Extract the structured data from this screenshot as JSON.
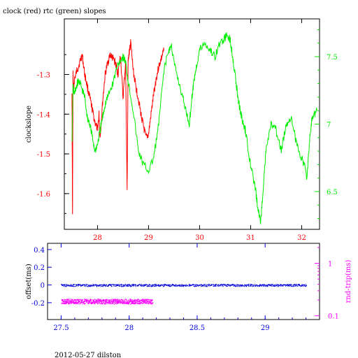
{
  "title": "clock (red) rtc (green) slopes",
  "footer": "2012-05-27 dilston",
  "colors": {
    "clock": "#ff0000",
    "rtc": "#00ee00",
    "offset": "#0000dd",
    "rndtrip": "#ff00ff",
    "frame": "#000000"
  },
  "chart_data": [
    {
      "type": "line",
      "title": "clock (red) rtc (green) slopes",
      "xlabel": "",
      "ylabel": "clockslope",
      "y2label": "",
      "xlim": [
        27.35,
        32.35
      ],
      "ylim": [
        -1.69,
        -1.16
      ],
      "y2lim": [
        6.22,
        7.78
      ],
      "x_ticks": [
        28,
        29,
        30,
        31,
        32
      ],
      "x_tick_labels": [
        "28",
        "29",
        "30",
        "31",
        "32"
      ],
      "y_ticks": [
        -1.6,
        -1.5,
        -1.4,
        -1.3
      ],
      "y_tick_labels": [
        "-1.6",
        "-1.5",
        "-1.4",
        "-1.3"
      ],
      "y2_ticks": [
        6.5,
        7,
        7.5
      ],
      "y2_tick_labels": [
        "6.5",
        "7",
        "7.5"
      ],
      "series": [
        {
          "name": "clock",
          "axis": "left",
          "x": [
            27.5,
            27.51,
            27.52,
            27.53,
            27.55,
            27.6,
            27.65,
            27.7,
            27.75,
            27.8,
            27.85,
            27.9,
            27.95,
            28.0,
            28.03,
            28.05,
            28.1,
            28.15,
            28.2,
            28.25,
            28.3,
            28.35,
            28.4,
            28.45,
            28.5,
            28.55,
            28.58,
            28.6,
            28.63,
            28.65,
            28.7,
            28.75,
            28.8,
            28.85,
            28.9,
            28.95,
            29.0,
            29.05,
            29.1,
            29.15,
            29.2,
            29.25,
            29.3
          ],
          "y": [
            -1.34,
            -1.66,
            -1.3,
            -1.34,
            -1.31,
            -1.29,
            -1.27,
            -1.25,
            -1.3,
            -1.33,
            -1.36,
            -1.39,
            -1.42,
            -1.44,
            -1.4,
            -1.46,
            -1.37,
            -1.3,
            -1.27,
            -1.25,
            -1.26,
            -1.27,
            -1.3,
            -1.25,
            -1.36,
            -1.27,
            -1.6,
            -1.26,
            -1.24,
            -1.22,
            -1.29,
            -1.33,
            -1.36,
            -1.4,
            -1.43,
            -1.46,
            -1.45,
            -1.4,
            -1.35,
            -1.31,
            -1.28,
            -1.26,
            -1.24
          ]
        },
        {
          "name": "rtc",
          "axis": "right",
          "x": [
            27.5,
            27.52,
            27.55,
            27.6,
            27.65,
            27.7,
            27.75,
            27.8,
            27.85,
            27.9,
            27.95,
            28.0,
            28.05,
            28.1,
            28.15,
            28.2,
            28.3,
            28.4,
            28.5,
            28.55,
            28.6,
            28.7,
            28.8,
            28.9,
            29.0,
            29.1,
            29.2,
            29.3,
            29.4,
            29.45,
            29.5,
            29.6,
            29.7,
            29.8,
            29.85,
            29.9,
            29.95,
            30.0,
            30.1,
            30.2,
            30.3,
            30.4,
            30.5,
            30.55,
            30.6,
            30.65,
            30.7,
            30.75,
            30.8,
            30.85,
            30.9,
            31.0,
            31.1,
            31.15,
            31.2,
            31.25,
            31.3,
            31.4,
            31.5,
            31.6,
            31.7,
            31.8,
            31.9,
            32.0,
            32.05,
            32.1,
            32.15,
            32.2,
            32.3
          ],
          "y": [
            6.85,
            7.28,
            7.22,
            7.3,
            7.32,
            7.25,
            7.2,
            7.05,
            7.0,
            6.9,
            6.8,
            6.85,
            6.95,
            7.05,
            7.15,
            7.2,
            7.3,
            7.45,
            7.5,
            7.46,
            7.32,
            7.1,
            6.8,
            6.7,
            6.65,
            6.75,
            7.0,
            7.4,
            7.55,
            7.58,
            7.45,
            7.3,
            7.15,
            7.0,
            7.2,
            7.35,
            7.45,
            7.55,
            7.6,
            7.55,
            7.5,
            7.6,
            7.64,
            7.66,
            7.62,
            7.5,
            7.35,
            7.2,
            7.1,
            7.0,
            6.95,
            6.7,
            6.5,
            6.35,
            6.28,
            6.55,
            6.8,
            7.0,
            6.95,
            6.8,
            7.0,
            7.05,
            6.85,
            6.75,
            6.7,
            6.6,
            6.85,
            7.05,
            7.1
          ]
        }
      ]
    },
    {
      "type": "scatter",
      "xlabel": "",
      "ylabel": "offset(ms)",
      "y2label": "rnd-trip(ms)",
      "xlim": [
        27.4,
        29.4
      ],
      "ylim": [
        -0.39,
        0.47
      ],
      "y2_scale": "log",
      "y2lim": [
        0.085,
        2.4
      ],
      "x_ticks": [
        27.5,
        28,
        28.5,
        29
      ],
      "x_tick_labels": [
        "27.5",
        "28",
        "28.5",
        "29"
      ],
      "y_ticks": [
        -0.2,
        0,
        0.2,
        0.4
      ],
      "y_tick_labels": [
        "-0.2",
        "0",
        "0.2",
        "0.4"
      ],
      "y2_ticks": [
        0.1,
        1
      ],
      "y2_tick_labels": [
        "0.1",
        "1"
      ],
      "series": [
        {
          "name": "offset",
          "axis": "left",
          "x": [
            27.5,
            27.75,
            28.0,
            28.25,
            28.5,
            28.75,
            29.0,
            29.3
          ],
          "y": [
            0.0,
            0.0,
            0.0,
            0.0,
            0.0,
            0.0,
            0.0,
            0.0
          ]
        },
        {
          "name": "rnd-trip",
          "axis": "right",
          "x": [
            27.5,
            27.75,
            28.0,
            28.17
          ],
          "y": [
            0.19,
            0.19,
            0.19,
            0.19
          ]
        }
      ]
    }
  ]
}
